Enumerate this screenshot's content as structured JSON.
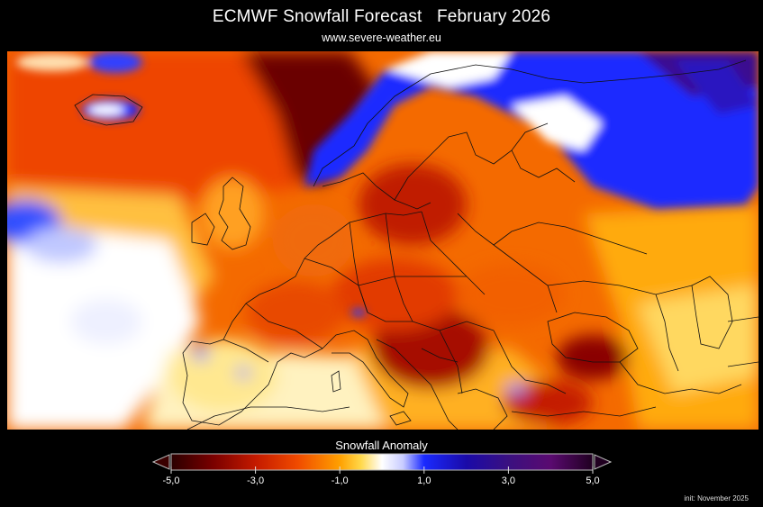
{
  "header": {
    "title": "ECMWF Snowfall Forecast   February 2026",
    "subtitle": "www.severe-weather.eu"
  },
  "legend": {
    "title": "Snowfall Anomaly",
    "min": -5.0,
    "max": 5.0,
    "ticks": [
      "-5,0",
      "-3,0",
      "-1,0",
      "1,0",
      "3,0",
      "5,0"
    ],
    "tick_values": [
      -5,
      -3,
      -1,
      1,
      3,
      5
    ],
    "stops": [
      {
        "v": -5.0,
        "color": "#2a0000"
      },
      {
        "v": -4.0,
        "color": "#7a0000"
      },
      {
        "v": -3.0,
        "color": "#c41a00"
      },
      {
        "v": -2.0,
        "color": "#f04a00"
      },
      {
        "v": -1.0,
        "color": "#ffa000"
      },
      {
        "v": -0.5,
        "color": "#ffd84a"
      },
      {
        "v": 0.0,
        "color": "#ffffff"
      },
      {
        "v": 0.5,
        "color": "#c8ccff"
      },
      {
        "v": 1.0,
        "color": "#1a2aff"
      },
      {
        "v": 2.0,
        "color": "#1a0aa8"
      },
      {
        "v": 3.0,
        "color": "#3a1080"
      },
      {
        "v": 4.0,
        "color": "#5a0a70"
      },
      {
        "v": 5.0,
        "color": "#200020"
      }
    ]
  },
  "footer": {
    "init": "init: November 2025"
  },
  "colors": {
    "background": "#000000",
    "coastline": "#111111"
  }
}
